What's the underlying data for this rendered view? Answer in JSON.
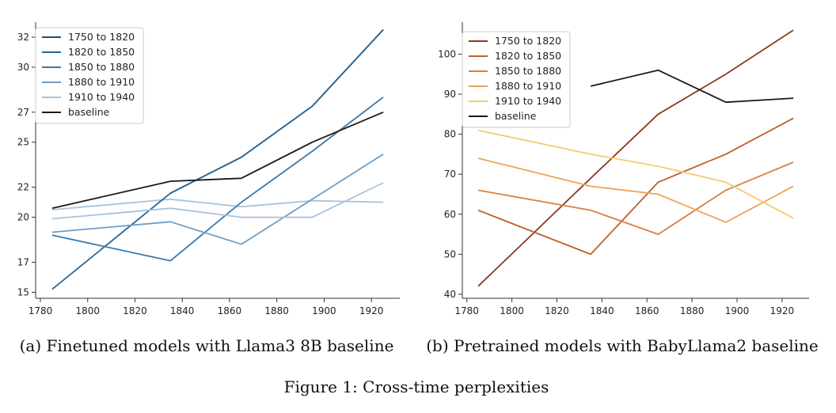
{
  "figure_caption": "Figure 1: Cross-time perplexities",
  "chart_data": [
    {
      "type": "line",
      "caption": "(a) Finetuned models with Llama3 8B baseline",
      "x": [
        1785,
        1835,
        1865,
        1895,
        1925
      ],
      "xticks": [
        1780,
        1800,
        1820,
        1840,
        1860,
        1880,
        1900,
        1920
      ],
      "xlim": [
        1778,
        1932
      ],
      "yticks": [
        15,
        17,
        20,
        22,
        25,
        27,
        30,
        32
      ],
      "ylim": [
        14.6,
        33.0
      ],
      "legend_position": "top-left",
      "grid": false,
      "series": [
        {
          "name": "1750 to 1820",
          "color": "#1f4e79",
          "values": [
            null,
            21.6,
            24.0,
            27.4,
            32.5
          ]
        },
        {
          "name": "1820 to 1850",
          "color": "#2b6592",
          "values": [
            15.2,
            21.6,
            24.0,
            27.4,
            32.5
          ]
        },
        {
          "name": "1850 to 1880",
          "color": "#3a78ab",
          "values": [
            18.8,
            17.1,
            21.0,
            24.4,
            28.0
          ]
        },
        {
          "name": "1880 to 1910",
          "color": "#6d9ec6",
          "values": [
            19.0,
            19.7,
            18.2,
            21.2,
            24.2
          ]
        },
        {
          "name": "1910 to 1940",
          "color": "#a9c2dc",
          "values": [
            19.9,
            20.6,
            20.0,
            20.0,
            22.3
          ]
        },
        {
          "name": "baseline",
          "color": "#1a1a1a",
          "values": [
            20.6,
            22.4,
            22.6,
            25.0,
            27.0
          ]
        }
      ],
      "extra_series": [
        {
          "color": "#a9c2dc",
          "values": [
            20.5,
            21.2,
            20.7,
            21.1,
            21.0
          ]
        }
      ]
    },
    {
      "type": "line",
      "caption": "(b) Pretrained models with BabyLlama2 baseline",
      "x": [
        1785,
        1835,
        1865,
        1895,
        1925
      ],
      "xticks": [
        1780,
        1800,
        1820,
        1840,
        1860,
        1880,
        1900,
        1920
      ],
      "xlim": [
        1778,
        1932
      ],
      "yticks": [
        40,
        50,
        60,
        70,
        80,
        90,
        100
      ],
      "ylim": [
        39,
        108
      ],
      "legend_position": "top-left",
      "grid": false,
      "series": [
        {
          "name": "1750 to 1820",
          "color": "#8b3a1e",
          "values": [
            42,
            69,
            85,
            95,
            106
          ]
        },
        {
          "name": "1820 to 1850",
          "color": "#c0602a",
          "values": [
            61,
            50,
            68,
            75,
            84
          ]
        },
        {
          "name": "1850 to 1880",
          "color": "#d98040",
          "values": [
            66,
            61,
            55,
            66,
            73
          ]
        },
        {
          "name": "1880 to 1910",
          "color": "#eda455",
          "values": [
            74,
            67,
            65,
            58,
            67
          ]
        },
        {
          "name": "1910 to 1940",
          "color": "#f6cb6c",
          "values": [
            81,
            75,
            72,
            68,
            59
          ]
        },
        {
          "name": "baseline",
          "color": "#1a1a1a",
          "values": [
            null,
            92,
            96,
            88,
            89
          ]
        }
      ]
    }
  ]
}
